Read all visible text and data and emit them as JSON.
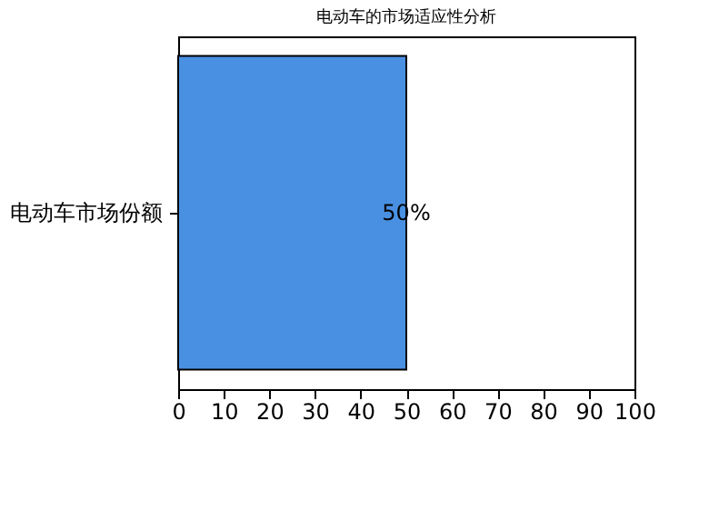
{
  "chart_data": {
    "type": "bar",
    "orientation": "horizontal",
    "title": "电动车的市场适应性分析",
    "categories": [
      "电动车市场份额"
    ],
    "series": [
      {
        "color": "#4a90e2",
        "values": [
          50
        ],
        "value_labels": [
          "50%"
        ]
      }
    ],
    "xlim": [
      0,
      100
    ],
    "xticks": [
      0,
      10,
      20,
      30,
      40,
      50,
      60,
      70,
      80,
      90,
      100
    ]
  }
}
